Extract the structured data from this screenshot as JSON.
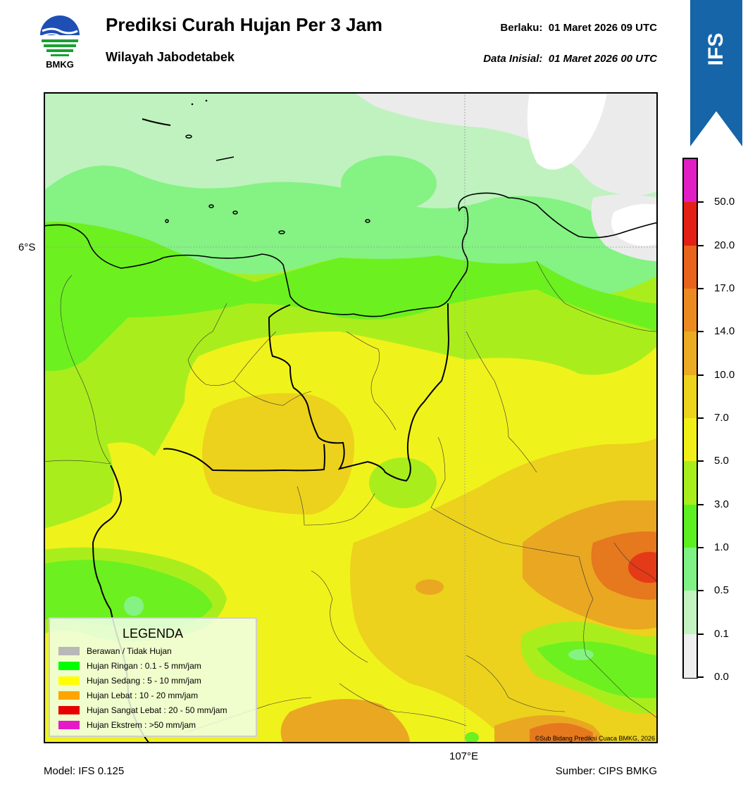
{
  "header": {
    "title": "Prediksi Curah Hujan Per 3 Jam",
    "subtitle": "Wilayah Jabodetabek",
    "valid_label": "Berlaku:  01 Maret 2026 09 UTC",
    "initial_label": "Data Inisial:  01 Maret 2026 00 UTC",
    "logo_text": "BMKG",
    "ribbon_text": "IFS"
  },
  "map": {
    "lat_label": "6°S",
    "lon_label": "107°E",
    "credit": "©Sub Bidang Prediksi Cuaca BMKG, 2026"
  },
  "legend": {
    "title": "LEGENDA",
    "items": [
      {
        "label": "Berawan / Tidak Hujan",
        "color": "#b8b8b8"
      },
      {
        "label": "Hujan Ringan : 0.1 - 5 mm/jam",
        "color": "#00ff00"
      },
      {
        "label": "Hujan Sedang : 5 - 10 mm/jam",
        "color": "#ffff00"
      },
      {
        "label": "Hujan Lebat : 10 - 20 mm/jam",
        "color": "#ffa500"
      },
      {
        "label": "Hujan Sangat Lebat : 20 - 50 mm/jam",
        "color": "#e60000"
      },
      {
        "label": "Hujan Ekstrem : >50 mm/jam",
        "color": "#e619c8"
      }
    ]
  },
  "colorbar": {
    "labels": [
      "50.0",
      "20.0",
      "17.0",
      "14.0",
      "10.0",
      "7.0",
      "5.0",
      "3.0",
      "1.0",
      "0.5",
      "0.1",
      "0.0"
    ],
    "colors": [
      "#e01ec4",
      "#e42016",
      "#e8641c",
      "#ec8a20",
      "#ecab22",
      "#ecd31c",
      "#f0f018",
      "#a8ee1c",
      "#5cf020",
      "#7ff286",
      "#c4f3c2",
      "#f0f0f0"
    ]
  },
  "footer": {
    "model": "Model: IFS 0.125",
    "source": "Sumber: CIPS BMKG"
  },
  "colors": {
    "ribbon": "#1565a8",
    "no_rain": "#ebebeb",
    "light_green": "#bff2bf",
    "mid_green": "#85f284",
    "green": "#6cf020",
    "yellow_green": "#a9ee1c",
    "yellow": "#f0f21c",
    "dark_yellow": "#ecd21c",
    "orange": "#eaa722",
    "dark_orange": "#e6781e",
    "red": "#e53a17"
  }
}
